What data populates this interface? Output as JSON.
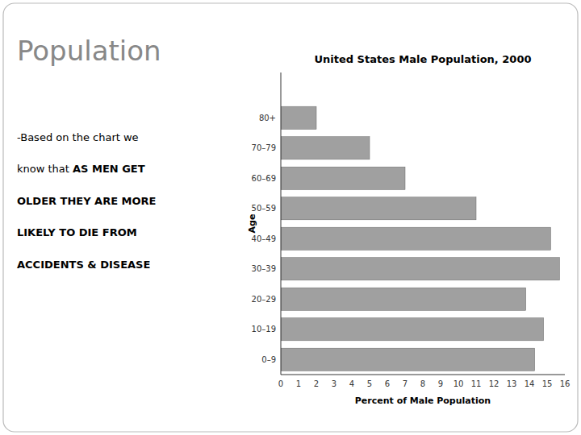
{
  "chart_data": {
    "type": "bar",
    "orientation": "horizontal",
    "title": "United States Male Population, 2000",
    "xlabel": "Percent of Male Population",
    "ylabel": "Age",
    "categories": [
      "80+",
      "70–79",
      "60–69",
      "50–59",
      "40–49",
      "30–39",
      "20–29",
      "10–19",
      "0–9"
    ],
    "values": [
      2.0,
      5.0,
      7.0,
      11.0,
      15.2,
      15.7,
      13.8,
      14.8,
      14.3
    ],
    "color": "#a0a0a0",
    "xlim": [
      0,
      16
    ],
    "xticks": [
      0,
      1,
      2,
      3,
      4,
      5,
      6,
      7,
      8,
      9,
      10,
      11,
      12,
      13,
      14,
      15,
      16
    ],
    "grid": false,
    "annotations": [
      "Population",
      "-Based on the chart we",
      "know that",
      "AS MEN GET",
      "OLDER THEY ARE MORE",
      "LIKELY TO DIE FROM",
      "ACCIDENTS & DISEASE"
    ]
  }
}
